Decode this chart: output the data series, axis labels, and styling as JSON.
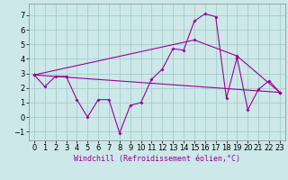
{
  "xlabel": "Windchill (Refroidissement éolien,°C)",
  "background_color": "#cce8e8",
  "grid_color": "#aacccc",
  "line_color": "#990099",
  "xlim": [
    -0.5,
    23.5
  ],
  "ylim": [
    -1.6,
    7.8
  ],
  "xticks": [
    0,
    1,
    2,
    3,
    4,
    5,
    6,
    7,
    8,
    9,
    10,
    11,
    12,
    13,
    14,
    15,
    16,
    17,
    18,
    19,
    20,
    21,
    22,
    23
  ],
  "yticks": [
    -1,
    0,
    1,
    2,
    3,
    4,
    5,
    6,
    7
  ],
  "line1_x": [
    0,
    1,
    2,
    3,
    4,
    5,
    6,
    7,
    8,
    9,
    10,
    11,
    12,
    13,
    14,
    15,
    16,
    17,
    18,
    19,
    20,
    21,
    22,
    23
  ],
  "line1_y": [
    2.9,
    2.1,
    2.8,
    2.8,
    1.2,
    0.0,
    1.2,
    1.2,
    -1.1,
    0.8,
    1.0,
    2.6,
    3.3,
    4.7,
    4.6,
    6.6,
    7.1,
    6.9,
    1.3,
    4.1,
    0.5,
    1.9,
    2.5,
    1.7
  ],
  "line2_x": [
    0,
    23
  ],
  "line2_y": [
    2.9,
    1.7
  ],
  "line3_x": [
    0,
    15,
    19,
    23
  ],
  "line3_y": [
    2.9,
    5.3,
    4.2,
    1.7
  ],
  "tick_fontsize": 6,
  "xlabel_fontsize": 6
}
